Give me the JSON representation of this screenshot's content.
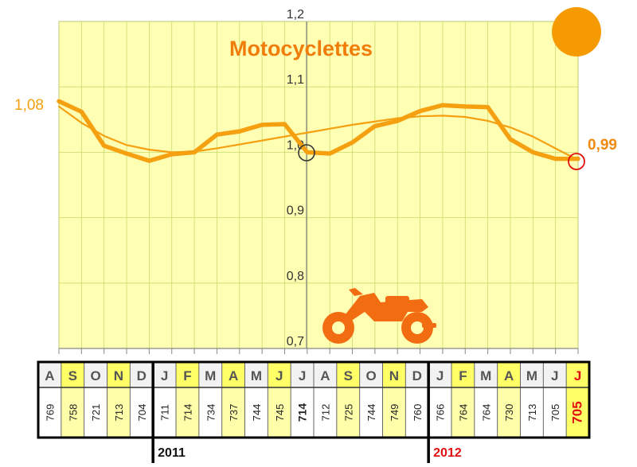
{
  "chart_data": {
    "type": "line",
    "title": "Motocyclettes",
    "ylim": [
      0.7,
      1.2
    ],
    "yticks": [
      "0,7",
      "0,8",
      "0,9",
      "1,0",
      "1,1",
      "1,2"
    ],
    "x": [
      "A",
      "S",
      "O",
      "N",
      "D",
      "J",
      "F",
      "M",
      "A",
      "M",
      "J",
      "J",
      "A",
      "S",
      "O",
      "N",
      "D",
      "J",
      "F",
      "M",
      "A",
      "M",
      "J",
      "J"
    ],
    "series": [
      {
        "values": [
          1.078,
          1.062,
          1.01,
          0.998,
          0.987,
          0.997,
          1.0,
          1.027,
          1.032,
          1.042,
          1.043,
          1.0,
          0.998,
          1.015,
          1.04,
          1.048,
          1.063,
          1.072,
          1.07,
          1.069,
          1.02,
          1.0,
          0.99,
          0.99
        ]
      },
      {
        "values": [
          1.07,
          1.045,
          1.025,
          1.011,
          1.004,
          1.0,
          1.001,
          1.006,
          1.012,
          1.018,
          1.024,
          1.03,
          1.036,
          1.042,
          1.047,
          1.052,
          1.055,
          1.056,
          1.054,
          1.048,
          1.038,
          1.024,
          1.006,
          0.988
        ]
      }
    ],
    "start_label": "1,08",
    "end_label": "0,99",
    "counts": [
      "769",
      "758",
      "721",
      "713",
      "704",
      "711",
      "714",
      "734",
      "737",
      "744",
      "745",
      "714",
      "712",
      "725",
      "744",
      "749",
      "760",
      "766",
      "764",
      "764",
      "730",
      "713",
      "705",
      "705"
    ],
    "years": [
      "2011",
      "2012"
    ],
    "grid": true
  },
  "colors": {
    "plot_bg": "#ffffb4",
    "grid": "#c9d96a",
    "line": "#f5a010",
    "title": "#f07c0a",
    "motorcycle": "#f26d12",
    "dot": "#f59a00",
    "highlight": "#ffff66",
    "current": "#e01010"
  },
  "icons": {
    "motorcycle": "motorcycle-icon",
    "status_dot": "orange-dot-icon"
  }
}
